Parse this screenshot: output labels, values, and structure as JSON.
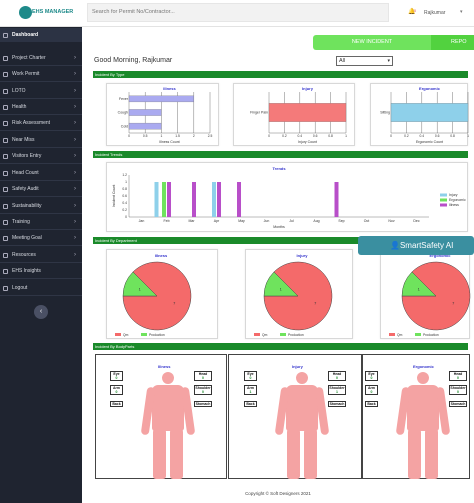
{
  "app": {
    "logo_text": "EHS MANAGER",
    "search_placeholder": "Search for Permit No/Contractor...",
    "user_name": "Rajkumar",
    "notif_count": "0"
  },
  "sidebar": {
    "items": [
      "Dashboard",
      "Project Charter",
      "Work Permit",
      "LOTO",
      "Health",
      "Risk Assessment",
      "Near Miss",
      "Visitors Entry",
      "Head Count",
      "Safety Audit",
      "Sustainability",
      "Training",
      "Meeting Goal",
      "Resources",
      "EHS Insights",
      "Logout"
    ]
  },
  "header": {
    "greeting": "Good Morning, Rajkumar",
    "year_selected": "All",
    "new_incident_label": "NEW INCIDENT",
    "report_label": "REPO"
  },
  "sections": {
    "by_type": "Incident By Type",
    "trends": "Incident Trends",
    "by_department": "Incident By Department",
    "by_bodyparts": "Incident By BodyParts"
  },
  "smart_safety": "SmartSafety AI",
  "chart_data": [
    {
      "type": "bar",
      "orientation": "horizontal",
      "title": "Illness",
      "categories": [
        "Fever",
        "Cough",
        "Cold"
      ],
      "values": [
        2,
        1,
        1
      ],
      "xlabel": "Illness Count",
      "xlim": [
        0,
        2.5
      ],
      "xticks": [
        "0",
        "0.5",
        "1",
        "1.5",
        "2",
        "2.5"
      ],
      "color": "#aaaaf0"
    },
    {
      "type": "bar",
      "orientation": "horizontal",
      "title": "Injury",
      "categories": [
        "Finger Pain"
      ],
      "values": [
        1
      ],
      "xlabel": "Injury Count",
      "xlim": [
        0,
        1
      ],
      "xticks": [
        "0",
        "0.2",
        "0.4",
        "0.6",
        "0.8",
        "1"
      ],
      "color": "#f47a7a"
    },
    {
      "type": "bar",
      "orientation": "horizontal",
      "title": "Ergonomic",
      "categories": [
        "Sitting"
      ],
      "values": [
        1
      ],
      "xlabel": "Ergonomic Count",
      "xlim": [
        0,
        1
      ],
      "xticks": [
        "0",
        "0.2",
        "0.4",
        "0.6",
        "0.8",
        "1"
      ],
      "color": "#8ed0ea"
    },
    {
      "type": "bar",
      "title": "Trends",
      "categories": [
        "Jan",
        "Feb",
        "Mar",
        "Apr",
        "May",
        "Jun",
        "Jul",
        "Aug",
        "Sep",
        "Oct",
        "Nov",
        "Dec"
      ],
      "xlabel": "Months",
      "ylabel": "Incident Count",
      "ylim": [
        0,
        1.2
      ],
      "yticks": [
        "0",
        "0.2",
        "0.4",
        "0.6",
        "0.8",
        "1",
        "1.2"
      ],
      "legend": "right",
      "series": [
        {
          "name": "Injury",
          "color": "#8ed0ea"
        },
        {
          "name": "Ergonomic",
          "color": "#6fe35d"
        },
        {
          "name": "Illness",
          "color": "#b84fc9"
        }
      ],
      "bars": [
        {
          "month": 1.6,
          "series": 0
        },
        {
          "month": 1.9,
          "series": 1
        },
        {
          "month": 2.1,
          "series": 2
        },
        {
          "month": 3.1,
          "series": 2
        },
        {
          "month": 3.9,
          "series": 0
        },
        {
          "month": 4.1,
          "series": 2
        },
        {
          "month": 4.9,
          "series": 2
        },
        {
          "month": 8.8,
          "series": 2
        }
      ]
    },
    {
      "type": "pie",
      "title": "Illness",
      "slices": [
        {
          "name": "Qm",
          "value": 7,
          "color": "#f46a6a"
        },
        {
          "name": "Production",
          "value": 1,
          "color": "#6fe35d"
        }
      ],
      "legend": "bottom"
    },
    {
      "type": "pie",
      "title": "Injury",
      "slices": [
        {
          "name": "Qm",
          "value": 7,
          "color": "#f46a6a"
        },
        {
          "name": "Production",
          "value": 1,
          "color": "#6fe35d"
        }
      ],
      "legend": "bottom"
    },
    {
      "type": "pie",
      "title": "Ergonomic",
      "slices": [
        {
          "name": "Qm",
          "value": 7,
          "color": "#f46a6a"
        },
        {
          "name": "Production",
          "value": 1,
          "color": "#6fe35d"
        }
      ],
      "legend": "bottom"
    }
  ],
  "body_parts": [
    {
      "title": "Illness",
      "eye": "0",
      "head": "0",
      "arm": "0",
      "shoulder": "0",
      "back_label": "Back",
      "stomach": "Stomach",
      "vals": {
        "eye": "0",
        "head": "0",
        "arm": "0",
        "shoulder": "0"
      }
    },
    {
      "title": "Injury",
      "eye": "0",
      "head": "0",
      "arm": "1",
      "shoulder": "1",
      "back_label": "Back",
      "stomach": "Stomach",
      "vals": {
        "eye": "0",
        "head": "0",
        "arm": "1",
        "shoulder": "1"
      }
    },
    {
      "title": "Ergonomic",
      "eye": "0",
      "head": "0",
      "arm": "0",
      "shoulder": "0",
      "back_label": "Back",
      "stomach": "Stomach",
      "vals": {
        "eye": "0",
        "head": "0",
        "arm": "0",
        "shoulder": "0"
      }
    }
  ],
  "body_labels": {
    "eye": "Eye",
    "head": "Head",
    "arm": "Arm",
    "shoulder": "Shoulder",
    "back": "Back",
    "stomach": "Stomach"
  },
  "copyright": "Copyright © Soft Designers 2021"
}
